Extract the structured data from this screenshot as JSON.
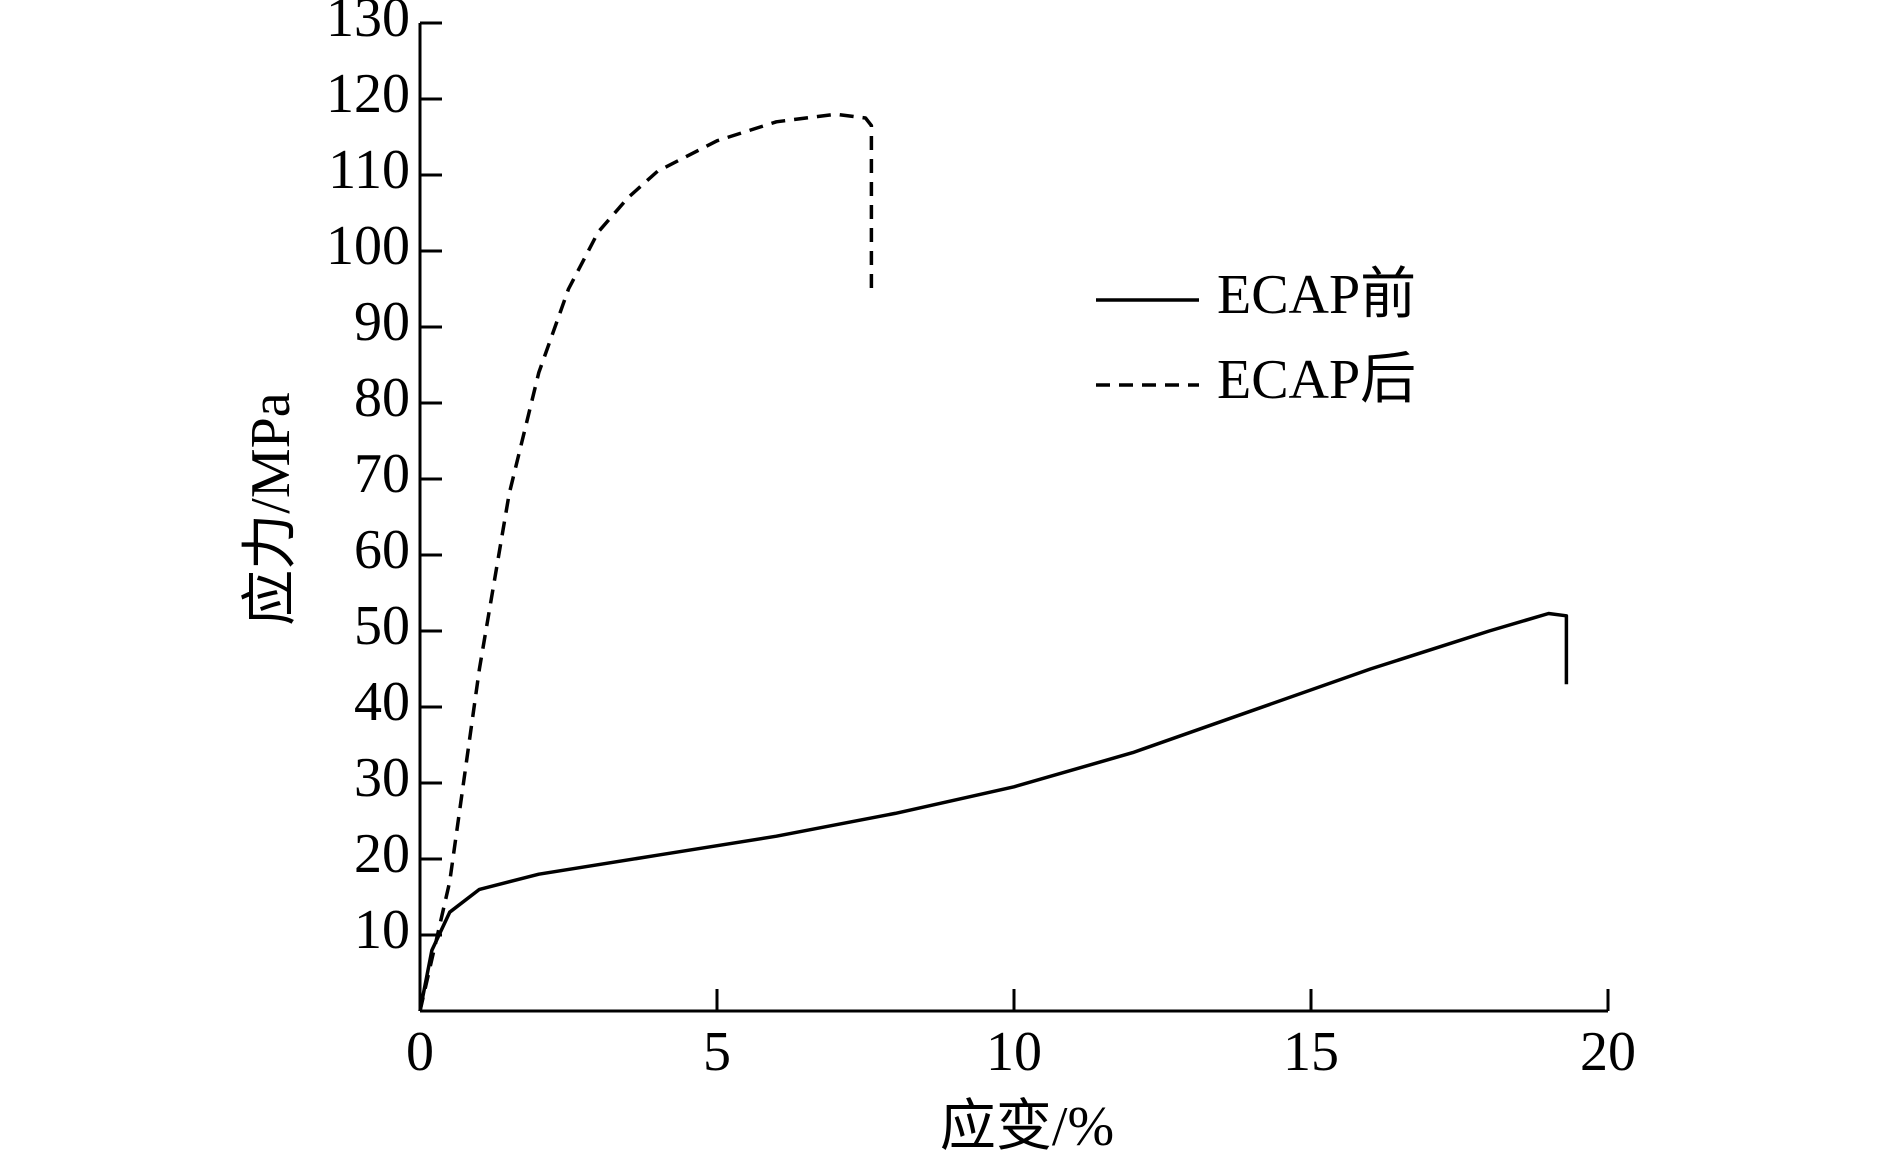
{
  "chart_data": {
    "type": "line",
    "xlabel": "应变/%",
    "ylabel": "应力/MPa",
    "xlim": [
      0,
      20
    ],
    "xticks": [
      0,
      5,
      10,
      15,
      20
    ],
    "ylim": [
      0,
      130
    ],
    "yticks": [
      10,
      20,
      30,
      40,
      50,
      60,
      70,
      80,
      90,
      100,
      110,
      120,
      130
    ],
    "legend": "upper right",
    "grid": false,
    "series": [
      {
        "name": "ECAP前",
        "color": "#000000",
        "dash": "solid",
        "x": [
          0,
          0.2,
          0.5,
          1,
          2,
          4,
          6,
          8,
          10,
          12,
          14,
          16,
          18,
          19,
          19.3,
          19.3
        ],
        "values": [
          0,
          8,
          13,
          16,
          18,
          20.5,
          23,
          26,
          29.5,
          34,
          39.5,
          45,
          50,
          52.3,
          52,
          43
        ]
      },
      {
        "name": "ECAP后",
        "color": "#000000",
        "dash": "dashed",
        "x": [
          0,
          0.5,
          1,
          1.5,
          2,
          2.5,
          3,
          3.5,
          4,
          5,
          6,
          7,
          7.5,
          7.6,
          7.6
        ],
        "values": [
          0,
          17,
          45,
          68,
          84,
          95,
          102.5,
          107,
          110.5,
          114.5,
          117,
          118,
          117.5,
          116.5,
          95
        ]
      }
    ]
  }
}
